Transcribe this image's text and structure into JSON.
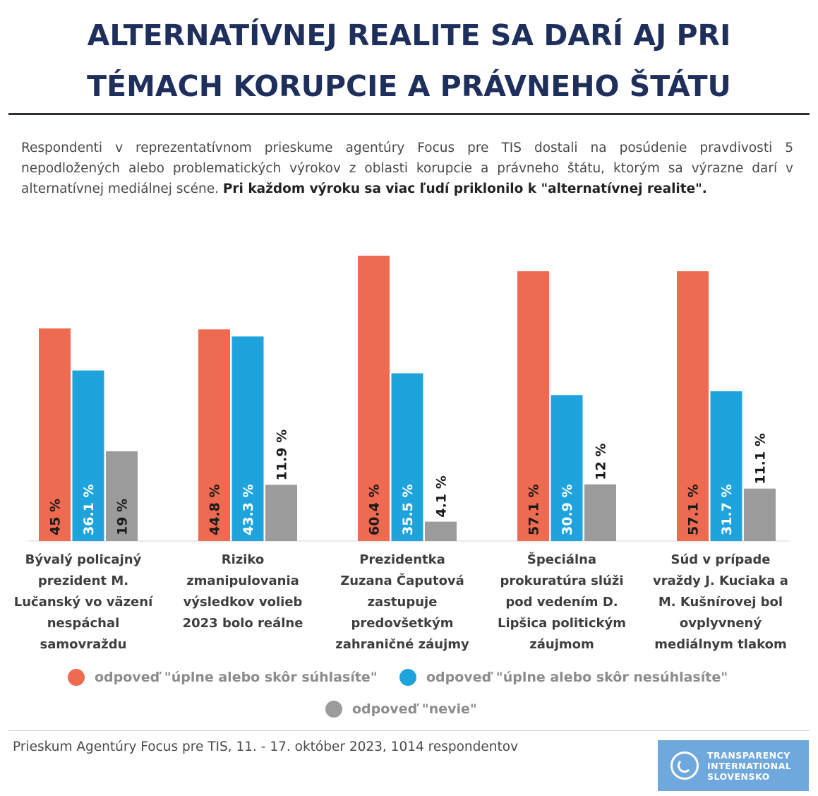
{
  "title_line1": "ALTERNATÍVNEJ REALITE SA DARÍ AJ PRI",
  "title_line2": "TÉMACH KORUPCIE A PRÁVNEHO ŠTÁTU",
  "subtitle_plain": "Respondenti v reprezentatívnom prieskume agentúry Focus pre TIS dostali na posúdenie pravdivosti 5 nepodložených alebo problematických výrokov z oblasti korupcie a právneho štátu, ktorým sa výrazne darí v alternatívnej mediálnej scéne. ",
  "subtitle_bold": "Pri každom výroku sa viac ľudí priklonilo k \"alternatívnej realite\".",
  "chart_data": {
    "type": "bar",
    "categories": [
      "Bývalý policajný prezident M. Lučanský vo väzení nespáchal samovraždu",
      "Riziko zmanipulovania výsledkov volieb 2023 bolo reálne",
      "Prezidentka Zuzana Čaputová zastupuje predovšetkým zahraničné záujmy",
      "Špeciálna prokuratúra slúži pod vedením D. Lipšica politickým záujmom",
      "Súd v prípade vraždy J. Kuciaka a M. Kušnírovej bol ovplyvnený mediálnym tlakom"
    ],
    "category_lines": [
      [
        "Bývalý policajný",
        "prezident M.",
        "Lučanský vo väzení",
        "nespáchal",
        "samovraždu"
      ],
      [
        "Riziko",
        "zmanipulovania",
        "výsledkov volieb",
        "2023 bolo reálne"
      ],
      [
        "Prezidentka",
        "Zuzana Čaputová",
        "zastupuje",
        "predovšetkým",
        "zahraničné záujmy"
      ],
      [
        "Špeciálna",
        "prokuratúra slúži",
        "pod vedením D.",
        "Lipšica politickým",
        "záujmom"
      ],
      [
        "Súd v prípade",
        "vraždy J. Kuciaka a",
        "M. Kušnírovej bol",
        "ovplyvnený",
        "mediálnym tlakom"
      ]
    ],
    "series": [
      {
        "name": "odpoveď \"úplne alebo skôr súhlasíte\"",
        "color": "#ee6a50",
        "values": [
          45,
          44.8,
          60.4,
          57.1,
          57.1
        ],
        "labels": [
          "45 %",
          "44.8 %",
          "60.4 %",
          "57.1 %",
          "57.1 %"
        ]
      },
      {
        "name": "odpoveď \"úplne alebo skôr nesúhlasíte\"",
        "color": "#1ea3dd",
        "values": [
          36.1,
          43.3,
          35.5,
          30.9,
          31.7
        ],
        "labels": [
          "36.1 %",
          "43.3 %",
          "35.5 %",
          "30.9 %",
          "31.7 %"
        ]
      },
      {
        "name": "odpoveď \"nevie\"",
        "color": "#9b9b9b",
        "values": [
          19,
          11.9,
          4.1,
          12,
          11.1
        ],
        "labels": [
          "19 %",
          "11.9 %",
          "4.1 %",
          "12 %",
          "11.1 %"
        ]
      }
    ],
    "ylim": [
      0,
      63
    ],
    "grid": false,
    "legend_placement": "bottom"
  },
  "source": "Prieskum Agentúry Focus pre TIS, 11. - 17. október 2023, 1014 respondentov",
  "logo": {
    "line1": "TRANSPARENCY",
    "line2": "INTERNATIONAL",
    "line3": "SLOVENSKO"
  }
}
